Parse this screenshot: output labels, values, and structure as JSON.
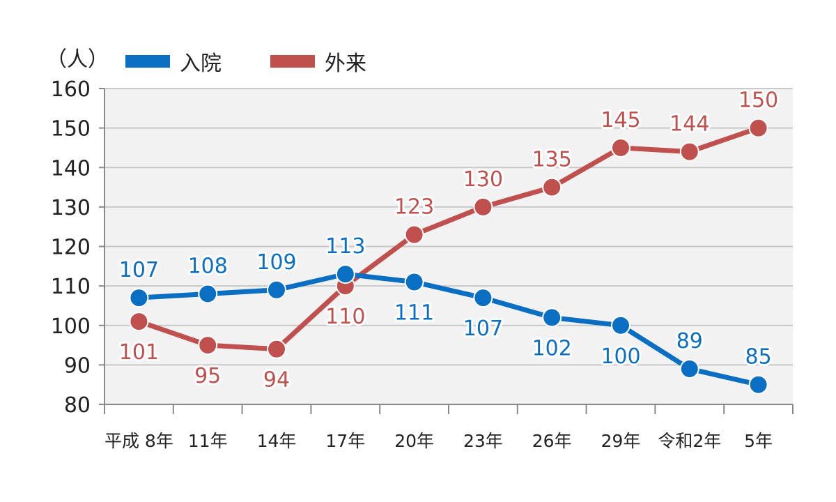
{
  "chart_data": {
    "type": "line",
    "categories": [
      "平成 8年",
      "11年",
      "14年",
      "17年",
      "20年",
      "23年",
      "26年",
      "29年",
      "令和2年",
      "5年"
    ],
    "series": [
      {
        "name": "入院",
        "color": "#0a6fc2",
        "values": [
          107,
          108,
          109,
          113,
          111,
          107,
          102,
          100,
          89,
          85
        ]
      },
      {
        "name": "外来",
        "color": "#c0504d",
        "values": [
          101,
          95,
          94,
          110,
          123,
          130,
          135,
          145,
          144,
          150
        ]
      }
    ],
    "ylim": [
      80,
      160
    ],
    "yticks": [
      80,
      90,
      100,
      110,
      120,
      130,
      140,
      150,
      160
    ],
    "unit_label": "（人）",
    "grid": true,
    "legend": "top"
  }
}
